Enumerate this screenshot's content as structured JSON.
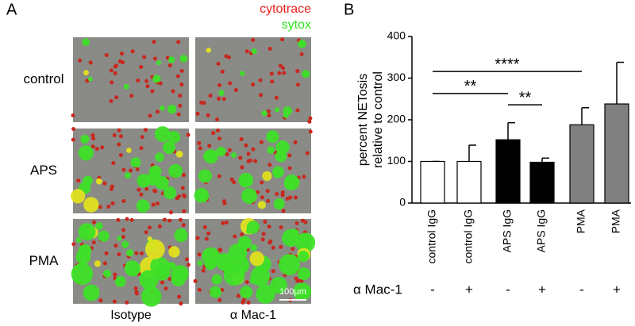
{
  "panel_a": {
    "label": "A",
    "legend": [
      {
        "text": "cytotrace",
        "color": "#e8201c"
      },
      {
        "text": "sytox",
        "color": "#2ee61e"
      }
    ],
    "rows": [
      "control",
      "APS",
      "PMA"
    ],
    "columns": [
      "Isotype",
      "α Mac-1"
    ],
    "scale_bar": "100μm"
  },
  "chart_data": {
    "type": "bar",
    "panel_label": "B",
    "y_label": [
      "percent NETosis",
      "relative to control"
    ],
    "categories": [
      "control IgG",
      "control IgG",
      "APS IgG",
      "APS IgG",
      "PMA",
      "PMA"
    ],
    "values": [
      100,
      100,
      152,
      98,
      188,
      238
    ],
    "errors": [
      0,
      39,
      41,
      10,
      41,
      100
    ],
    "colors": [
      "#ffffff",
      "#ffffff",
      "#000000",
      "#000000",
      "#808080",
      "#808080"
    ],
    "ylim": [
      0,
      400
    ],
    "yticks": [
      0,
      100,
      200,
      300,
      400
    ],
    "brackets": [
      {
        "from": 0,
        "to": 4,
        "y": 316,
        "label": "****"
      },
      {
        "from": 0,
        "to": 2,
        "y": 263,
        "label": "**"
      },
      {
        "from": 2,
        "to": 3,
        "y": 236,
        "label": "**"
      }
    ],
    "treatment_row": {
      "label": "α Mac-1",
      "signs": [
        "-",
        "+",
        "-",
        "+",
        "-",
        "+"
      ]
    }
  }
}
